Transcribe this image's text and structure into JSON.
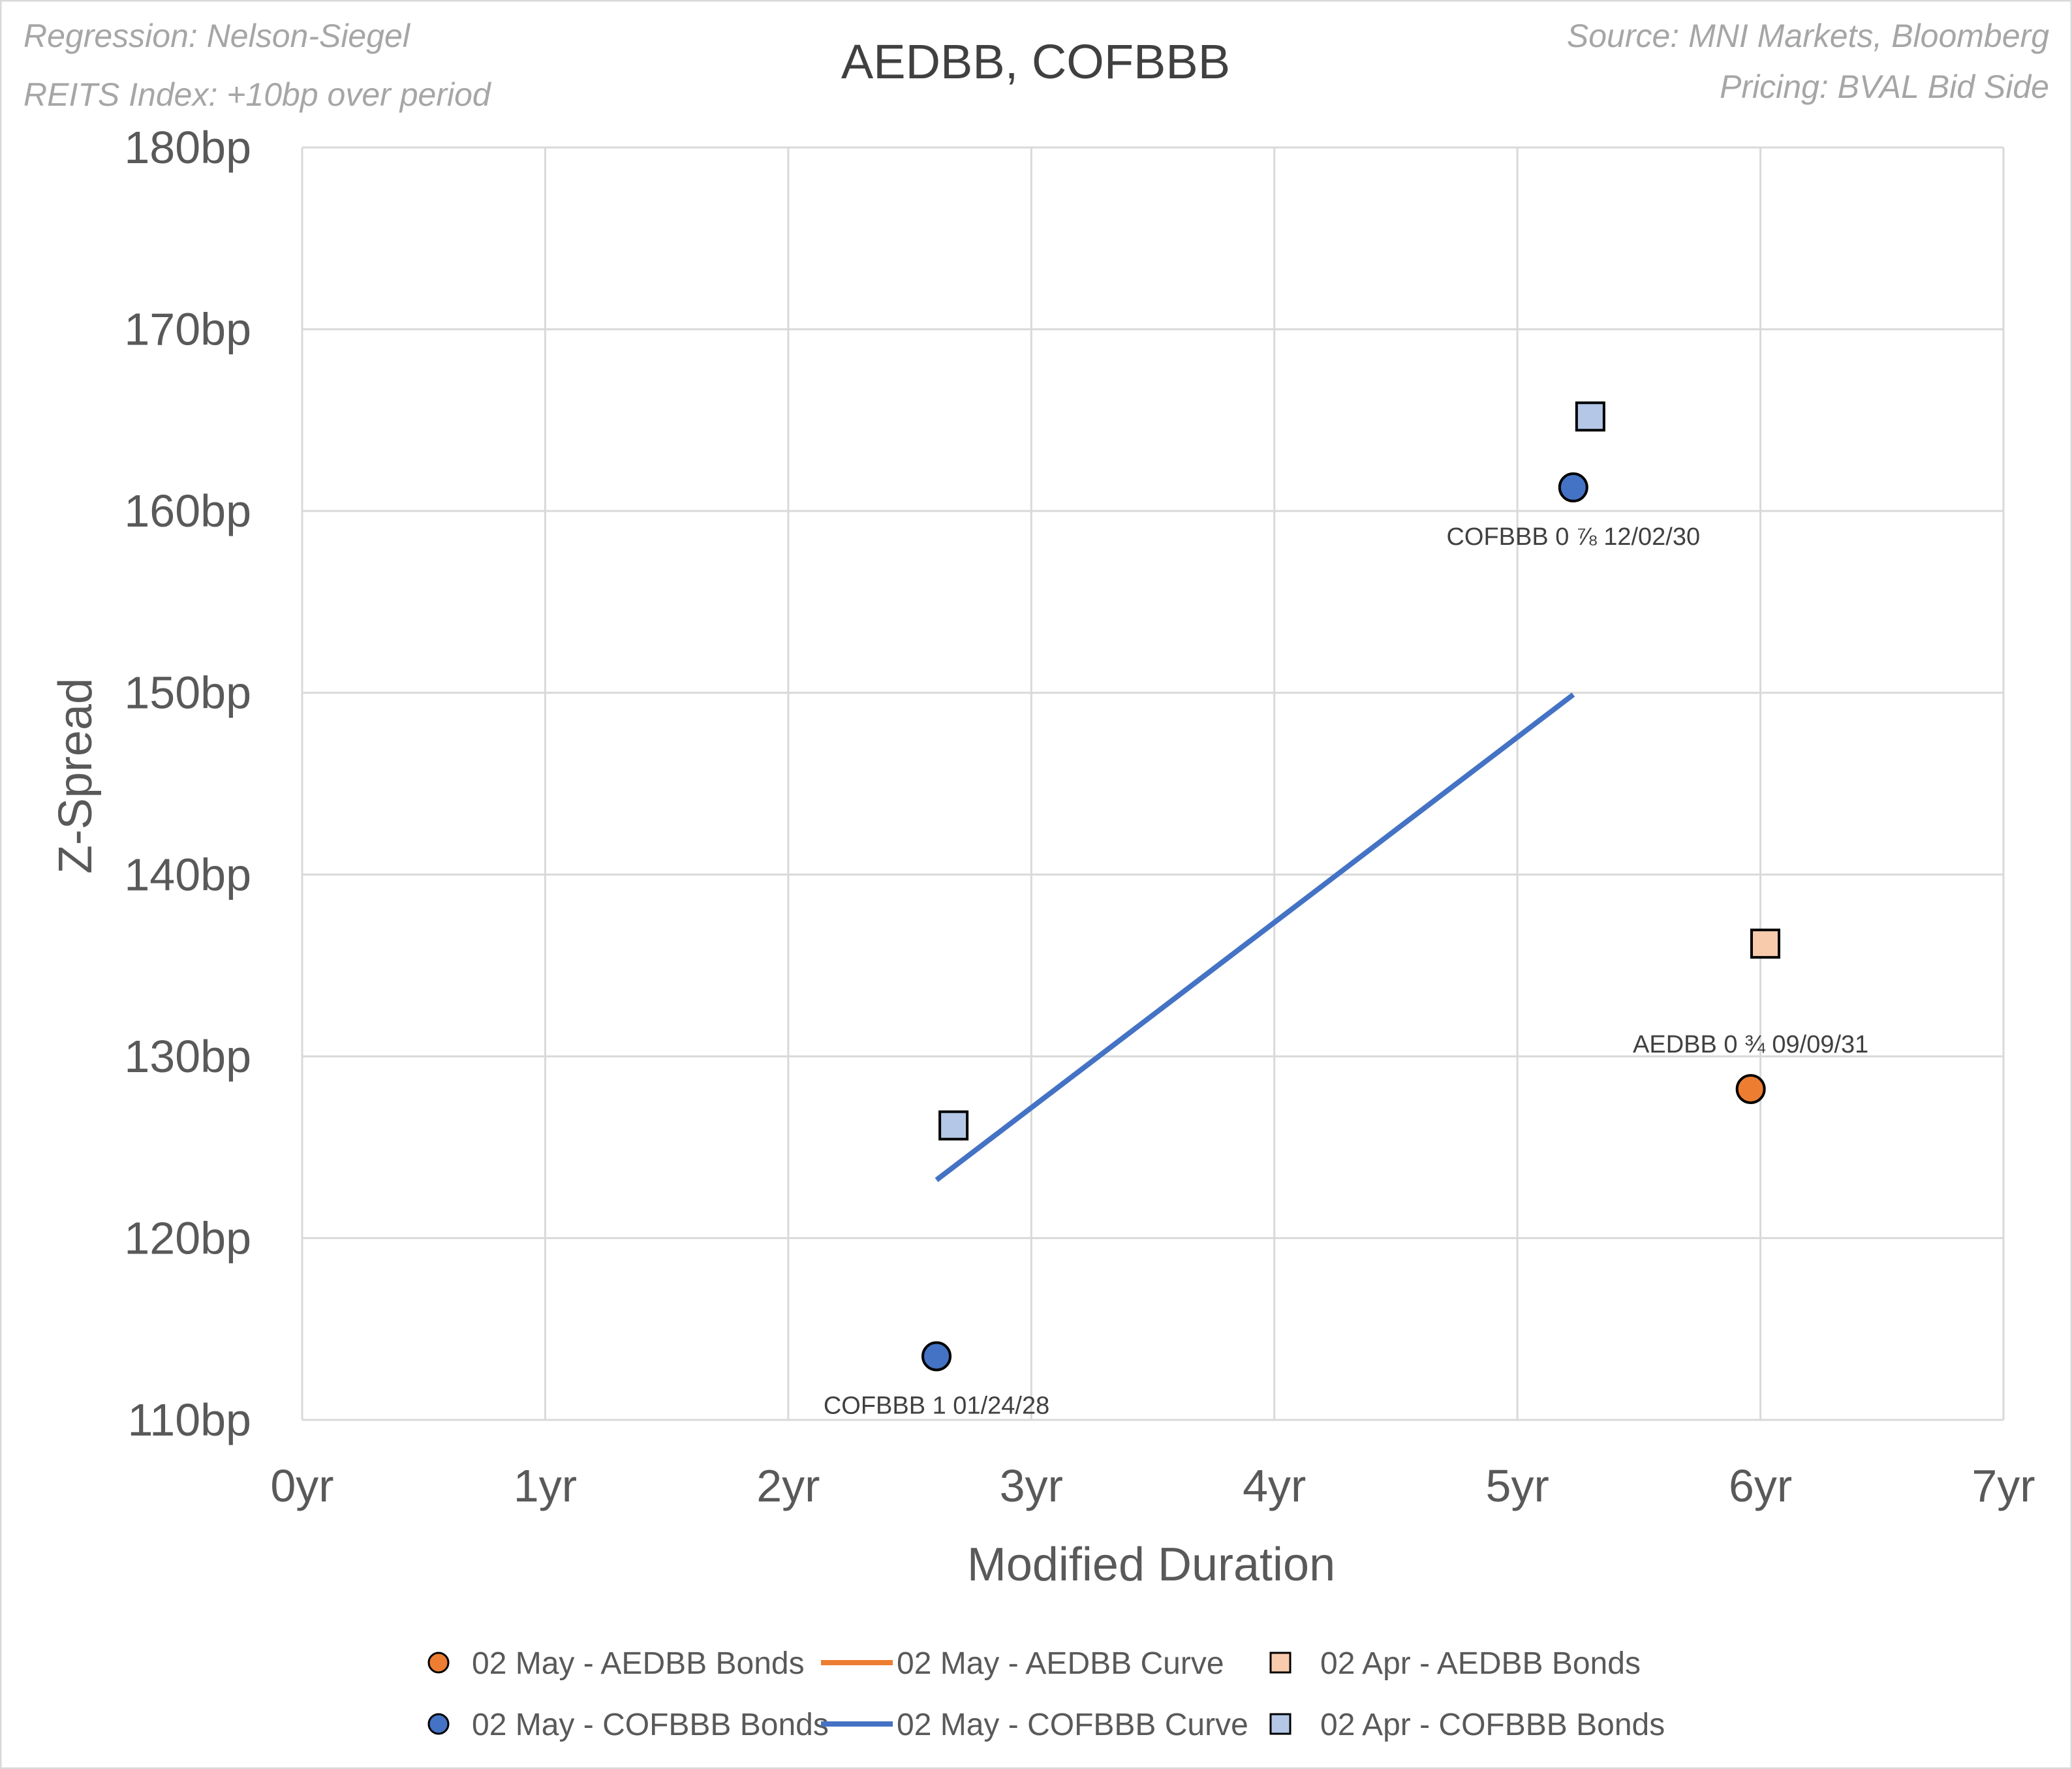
{
  "notes": {
    "regression": "Regression: Nelson-Siegel",
    "index": "REITS Index: +10bp over period",
    "source": "Source: MNI Markets, Bloomberg",
    "pricing": "Pricing: BVAL Bid Side"
  },
  "chart_data": {
    "type": "scatter",
    "title": "AEDBB, COFBBB",
    "xlabel": "Modified Duration",
    "ylabel": "Z-Spread",
    "xlim": [
      0,
      7
    ],
    "ylim": [
      110,
      180
    ],
    "x_ticks": [
      {
        "value": 0,
        "label": "0yr"
      },
      {
        "value": 1,
        "label": "1yr"
      },
      {
        "value": 2,
        "label": "2yr"
      },
      {
        "value": 3,
        "label": "3yr"
      },
      {
        "value": 4,
        "label": "4yr"
      },
      {
        "value": 5,
        "label": "5yr"
      },
      {
        "value": 6,
        "label": "6yr"
      },
      {
        "value": 7,
        "label": "7yr"
      }
    ],
    "y_ticks": [
      {
        "value": 110,
        "label": "110bp"
      },
      {
        "value": 120,
        "label": "120bp"
      },
      {
        "value": 130,
        "label": "130bp"
      },
      {
        "value": 140,
        "label": "140bp"
      },
      {
        "value": 150,
        "label": "150bp"
      },
      {
        "value": 160,
        "label": "160bp"
      },
      {
        "value": 170,
        "label": "170bp"
      },
      {
        "value": 180,
        "label": "180bp"
      }
    ],
    "grid": true,
    "legend_position": "bottom",
    "series": [
      {
        "name": "02 May - AEDBB Bonds",
        "kind": "marker-circle",
        "color": "#ed7d31",
        "points": [
          {
            "x": 5.96,
            "y": 128.2,
            "label": "AEDBB 0 ¾ 09/09/31"
          }
        ]
      },
      {
        "name": "02 May - AEDBB Curve",
        "kind": "line",
        "color": "#ed7d31",
        "points": []
      },
      {
        "name": "02 Apr - AEDBB Bonds",
        "kind": "marker-square",
        "color": "#f8cbad",
        "points": [
          {
            "x": 6.02,
            "y": 136.2
          }
        ]
      },
      {
        "name": "02 May - COFBBB Bonds",
        "kind": "marker-circle",
        "color": "#4472c4",
        "points": [
          {
            "x": 2.61,
            "y": 113.5,
            "label": "COFBBB 1 01/24/28"
          },
          {
            "x": 5.23,
            "y": 161.3,
            "label": "COFBBB 0 ⅞ 12/02/30"
          }
        ]
      },
      {
        "name": "02 May - COFBBB Curve",
        "kind": "line",
        "color": "#4472c4",
        "points": [
          {
            "x": 2.61,
            "y": 123.2
          },
          {
            "x": 5.23,
            "y": 149.9
          }
        ]
      },
      {
        "name": "02 Apr - COFBBB Bonds",
        "kind": "marker-square",
        "color": "#b4c7e7",
        "points": [
          {
            "x": 2.68,
            "y": 126.2
          },
          {
            "x": 5.3,
            "y": 165.2
          }
        ]
      }
    ]
  }
}
